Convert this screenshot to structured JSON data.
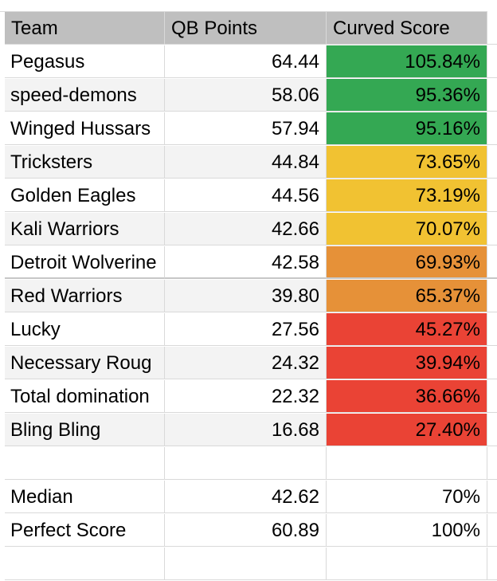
{
  "sheet": {
    "headers": [
      "Team",
      "QB Points",
      "Curved Score"
    ],
    "rows": [
      {
        "team": "Pegasus",
        "points": "64.44",
        "score": "105.84%",
        "color": "#34a853"
      },
      {
        "team": "speed-demons",
        "points": "58.06",
        "score": "95.36%",
        "color": "#34a853"
      },
      {
        "team": "Winged Hussars",
        "points": "57.94",
        "score": "95.16%",
        "color": "#34a853"
      },
      {
        "team": "Tricksters",
        "points": "44.84",
        "score": "73.65%",
        "color": "#f1c232"
      },
      {
        "team": "Golden Eagles",
        "points": "44.56",
        "score": "73.19%",
        "color": "#f1c232"
      },
      {
        "team": "Kali Warriors",
        "points": "42.66",
        "score": "70.07%",
        "color": "#f1c232"
      },
      {
        "team": "Detroit Wolverine",
        "points": "42.58",
        "score": "69.93%",
        "color": "#e69138"
      },
      {
        "team": "Red Warriors",
        "points": "39.80",
        "score": "65.37%",
        "color": "#e69138"
      },
      {
        "team": "Lucky",
        "points": "27.56",
        "score": "45.27%",
        "color": "#ea4335"
      },
      {
        "team": "Necessary Roug",
        "points": "24.32",
        "score": "39.94%",
        "color": "#ea4335"
      },
      {
        "team": "Total domination",
        "points": "22.32",
        "score": "36.66%",
        "color": "#ea4335"
      },
      {
        "team": "Bling Bling",
        "points": "16.68",
        "score": "27.40%",
        "color": "#ea4335"
      }
    ],
    "summary": [
      {
        "label": "Median",
        "points": "42.62",
        "score": "70%"
      },
      {
        "label": "Perfect Score",
        "points": "60.89",
        "score": "100%"
      }
    ]
  }
}
